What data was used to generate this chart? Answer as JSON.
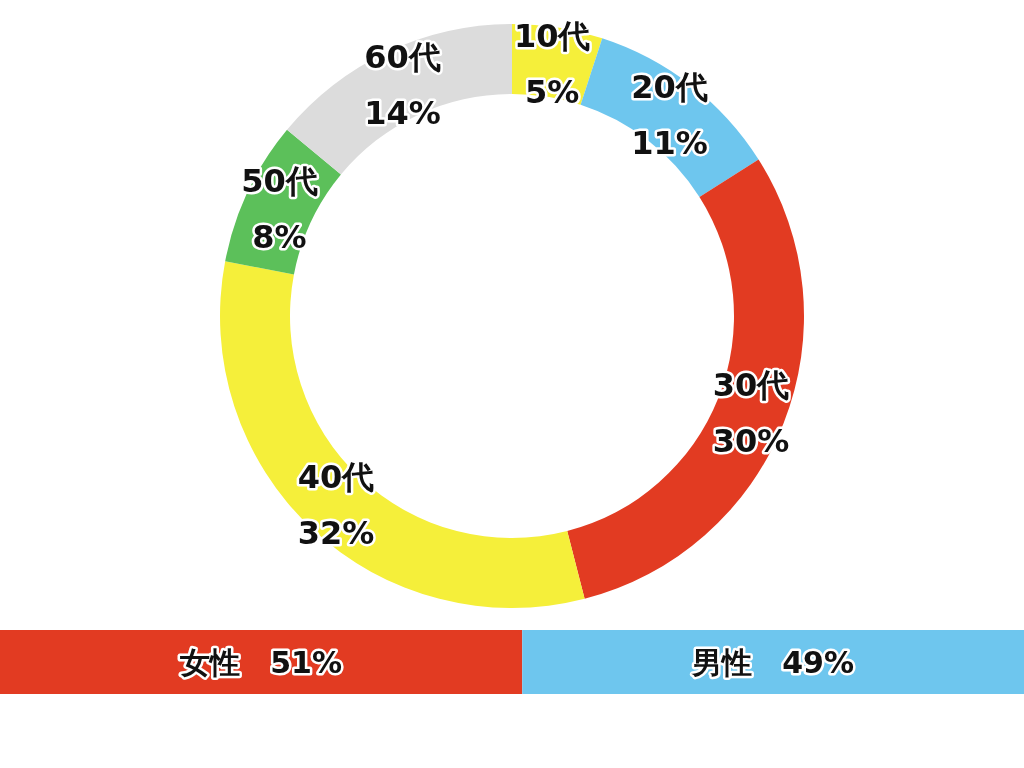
{
  "chart_data": [
    {
      "type": "donut",
      "categories": [
        "10代",
        "20代",
        "30代",
        "40代",
        "50代",
        "60代"
      ],
      "values": [
        5,
        11,
        30,
        32,
        8,
        14
      ],
      "value_labels": [
        "5%",
        "11%",
        "30%",
        "32%",
        "8%",
        "14%"
      ],
      "colors": [
        "#f5ef3a",
        "#6ec6ee",
        "#e23b22",
        "#f5ef3a",
        "#5cc05a",
        "#dcdcdc"
      ]
    },
    {
      "type": "bar",
      "orientation": "horizontal",
      "stacked": true,
      "categories": [
        null
      ],
      "series": [
        {
          "name": "女性",
          "color": "#e23b22",
          "values": [
            51
          ],
          "value_labels": [
            "51%"
          ]
        },
        {
          "name": "男性",
          "color": "#6ec6ee",
          "values": [
            49
          ],
          "value_labels": [
            "49%"
          ]
        }
      ]
    }
  ]
}
